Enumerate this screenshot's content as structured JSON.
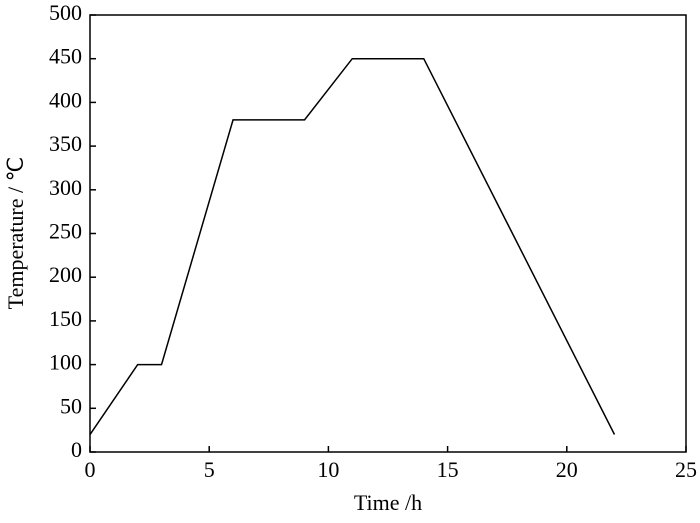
{
  "chart_data": {
    "type": "line",
    "x_label": "Time /h",
    "y_label": "Temperature / ℃",
    "x": [
      0,
      2,
      3,
      6,
      9,
      11,
      14,
      22
    ],
    "series": [
      {
        "color": "#000000",
        "values": [
          20,
          100,
          100,
          380,
          380,
          450,
          450,
          20
        ]
      }
    ],
    "xlim": [
      0,
      25
    ],
    "xticks": [
      0,
      5,
      10,
      15,
      20,
      25
    ],
    "ylim": [
      0,
      500
    ],
    "yticks": [
      0,
      50,
      100,
      150,
      200,
      250,
      300,
      350,
      400,
      450,
      500
    ],
    "grid": false
  }
}
